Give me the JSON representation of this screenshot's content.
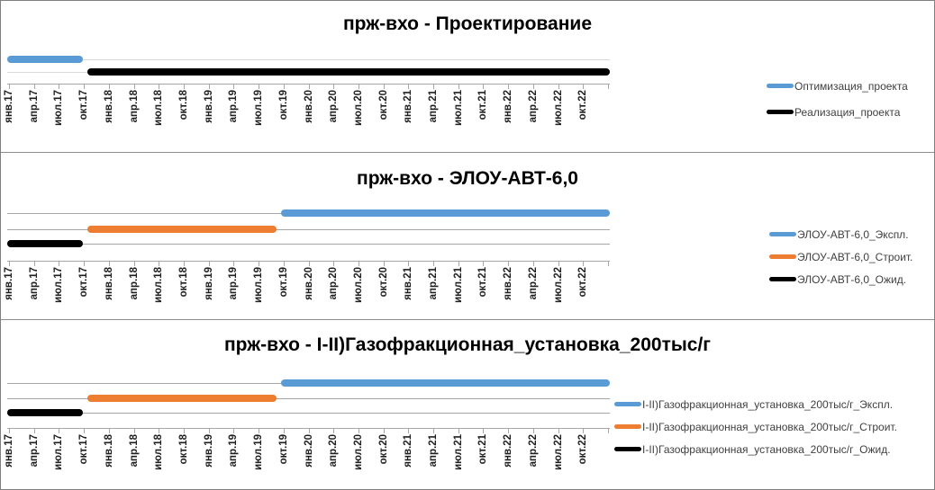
{
  "app": {
    "description": "Three stacked Excel-style project timeline (Gantt) charts on a white sheet"
  },
  "colors": {
    "accent_blue": "#5B9BD5",
    "accent_orange": "#ED7D31",
    "accent_black": "#000000",
    "gridline_light": "#d9d9d9",
    "gridline_mid": "#a6a6a6",
    "axis": "#a6a6a6",
    "panel_border": "#8c8c8c"
  },
  "chart_data": [
    {
      "type": "bar",
      "orientation": "horizontal",
      "title": "прж-вхо - Проектирование",
      "grid": true,
      "legend_position": "right",
      "x_axis": {
        "unit": "quarters",
        "range": [
          "янв.17",
          "янв.23"
        ],
        "tick_labels": [
          "янв.17",
          "апр.17",
          "июл.17",
          "окт.17",
          "янв.18",
          "апр.18",
          "июл.18",
          "окт.18",
          "янв.19",
          "апр.19",
          "июл.19",
          "окт.19",
          "янв.20",
          "апр.20",
          "июл.20",
          "окт.20",
          "янв.21",
          "апр.21",
          "июл.21",
          "окт.21",
          "янв.22",
          "апр.22",
          "июл.22",
          "окт.22"
        ]
      },
      "series": [
        {
          "name": "Оптимизация_проекта",
          "color": "#5B9BD5",
          "row": 0,
          "start": "янв.17",
          "end": "окт.17",
          "start_month": 0,
          "end_month": 8.7
        },
        {
          "name": "Реализация_проекта",
          "color": "#000000",
          "row": 1,
          "start": "окт.17",
          "end": "янв.23",
          "start_month": 9.6,
          "end_month": 72
        }
      ]
    },
    {
      "type": "bar",
      "orientation": "horizontal",
      "title": "прж-вхо - ЭЛОУ-АВТ-6,0",
      "grid": true,
      "legend_position": "right",
      "x_axis": {
        "unit": "quarters",
        "range": [
          "янв.17",
          "янв.23"
        ],
        "tick_labels": [
          "янв.17",
          "апр.17",
          "июл.17",
          "окт.17",
          "янв.18",
          "апр.18",
          "июл.18",
          "окт.18",
          "янв.19",
          "апр.19",
          "июл.19",
          "окт.19",
          "янв.20",
          "апр.20",
          "июл.20",
          "окт.20",
          "янв.21",
          "апр.21",
          "июл.21",
          "окт.21",
          "янв.22",
          "апр.22",
          "июл.22",
          "окт.22"
        ]
      },
      "series": [
        {
          "name": "ЭЛОУ-АВТ-6,0_Экспл.",
          "color": "#5B9BD5",
          "row": 0,
          "start": "сен.19",
          "end": "янв.23",
          "start_month": 32.9,
          "end_month": 72
        },
        {
          "name": "ЭЛОУ-АВТ-6,0_Строит.",
          "color": "#ED7D31",
          "row": 1,
          "start": "окт.17",
          "end": "авг.19",
          "start_month": 9.6,
          "end_month": 31.9
        },
        {
          "name": "ЭЛОУ-АВТ-6,0_Ожид.",
          "color": "#000000",
          "row": 2,
          "start": "янв.17",
          "end": "окт.17",
          "start_month": 0,
          "end_month": 8.7
        }
      ]
    },
    {
      "type": "bar",
      "orientation": "horizontal",
      "title": "прж-вхо - I-II)Газофракционная_установка_200тыс/г",
      "grid": true,
      "legend_position": "right",
      "x_axis": {
        "unit": "quarters",
        "range": [
          "янв.17",
          "янв.23"
        ],
        "tick_labels": [
          "янв.17",
          "апр.17",
          "июл.17",
          "окт.17",
          "янв.18",
          "апр.18",
          "июл.18",
          "окт.18",
          "янв.19",
          "апр.19",
          "июл.19",
          "окт.19",
          "янв.20",
          "апр.20",
          "июл.20",
          "окт.20",
          "янв.21",
          "апр.21",
          "июл.21",
          "окт.21",
          "янв.22",
          "апр.22",
          "июл.22",
          "окт.22"
        ]
      },
      "series": [
        {
          "name": "I-II)Газофракционная_установка_200тыс/г_Экспл.",
          "color": "#5B9BD5",
          "row": 0,
          "start": "сен.19",
          "end": "янв.23",
          "start_month": 32.9,
          "end_month": 72
        },
        {
          "name": "I-II)Газофракционная_установка_200тыс/г_Строит.",
          "color": "#ED7D31",
          "row": 1,
          "start": "окт.17",
          "end": "авг.19",
          "start_month": 9.6,
          "end_month": 31.9
        },
        {
          "name": "I-II)Газофракционная_установка_200тыс/г_Ожид.",
          "color": "#000000",
          "row": 2,
          "start": "янв.17",
          "end": "окт.17",
          "start_month": 0,
          "end_month": 8.7
        }
      ]
    }
  ]
}
